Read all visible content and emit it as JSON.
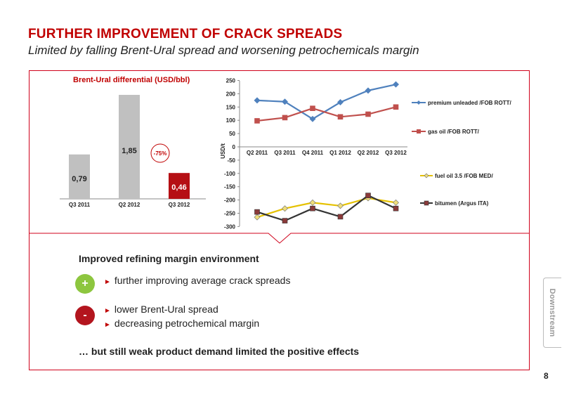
{
  "header": {
    "title": "FURTHER IMPROVEMENT OF CRACK SPREADS",
    "subtitle": "Limited by falling Brent-Ural spread and worsening petrochemicals margin"
  },
  "chart_data": [
    {
      "type": "bar",
      "title": "Brent-Ural differential (USD/bbl)",
      "categories": [
        "Q3 2011",
        "Q2 2012",
        "Q3 2012"
      ],
      "values": [
        0.79,
        1.85,
        0.46
      ],
      "value_labels": [
        "0,79",
        "1,85",
        "0,46"
      ],
      "bar_colors": [
        "#c0c0c0",
        "#c0c0c0",
        "#b50f14"
      ],
      "annotation": "-75%",
      "ylim": [
        0,
        2
      ]
    },
    {
      "type": "line",
      "ylabel": "USD/t",
      "categories": [
        "Q2 2011",
        "Q3 2011",
        "Q4 2011",
        "Q1 2012",
        "Q2 2012",
        "Q3 2012"
      ],
      "ylim": [
        -300,
        250
      ],
      "yticks": [
        250,
        200,
        150,
        100,
        50,
        0,
        -50,
        -100,
        -150,
        -200,
        -250,
        -300
      ],
      "legend_position": "right",
      "series": [
        {
          "name": "premium unleaded /FOB ROTT/",
          "color": "#4f81bd",
          "marker": "diamond",
          "values": [
            175,
            170,
            105,
            168,
            212,
            235
          ]
        },
        {
          "name": "gas oil /FOB ROTT/",
          "color": "#c0504d",
          "marker": "square",
          "values": [
            98,
            110,
            145,
            113,
            123,
            150
          ]
        },
        {
          "name": "fuel oil 3.5 /FOB MED/",
          "color": "#e5c100",
          "marker": "diamond",
          "values": [
            -265,
            -232,
            -210,
            -222,
            -193,
            -210
          ]
        },
        {
          "name": "bitumen (Argus ITA)",
          "color": "#333333",
          "marker": "square",
          "values": [
            -245,
            -278,
            -232,
            -263,
            -183,
            -232
          ]
        }
      ]
    }
  ],
  "content": {
    "section_title": "Improved refining margin environment",
    "plus_symbol": "+",
    "minus_symbol": "-",
    "positives": [
      "further improving average crack spreads"
    ],
    "negatives": [
      "lower Brent-Ural spread",
      "decreasing petrochemical margin"
    ],
    "conclusion": "… but still weak product demand limited the positive effects"
  },
  "side_tab": "Downstream",
  "page_number": "8"
}
